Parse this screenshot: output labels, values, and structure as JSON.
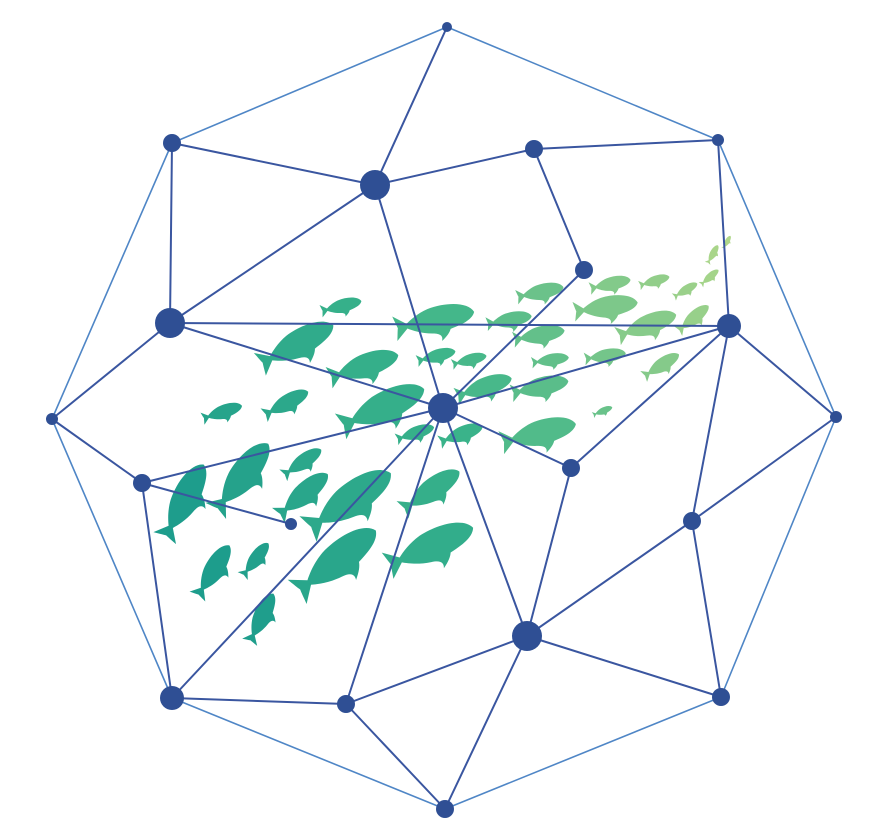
{
  "figure": {
    "kind": "network-with-fish-school",
    "colors": {
      "background": "#ffffff",
      "node": "#2f4f94",
      "inner_edge": "#3a56a0",
      "outer_edge": "#4f86c6",
      "fish_dark": "#1a9a8c",
      "fish_mid": "#3bb48a",
      "fish_light": "#b3d88a"
    },
    "icons": {
      "node": "circle-node-icon",
      "fish": "fish-icon"
    }
  }
}
